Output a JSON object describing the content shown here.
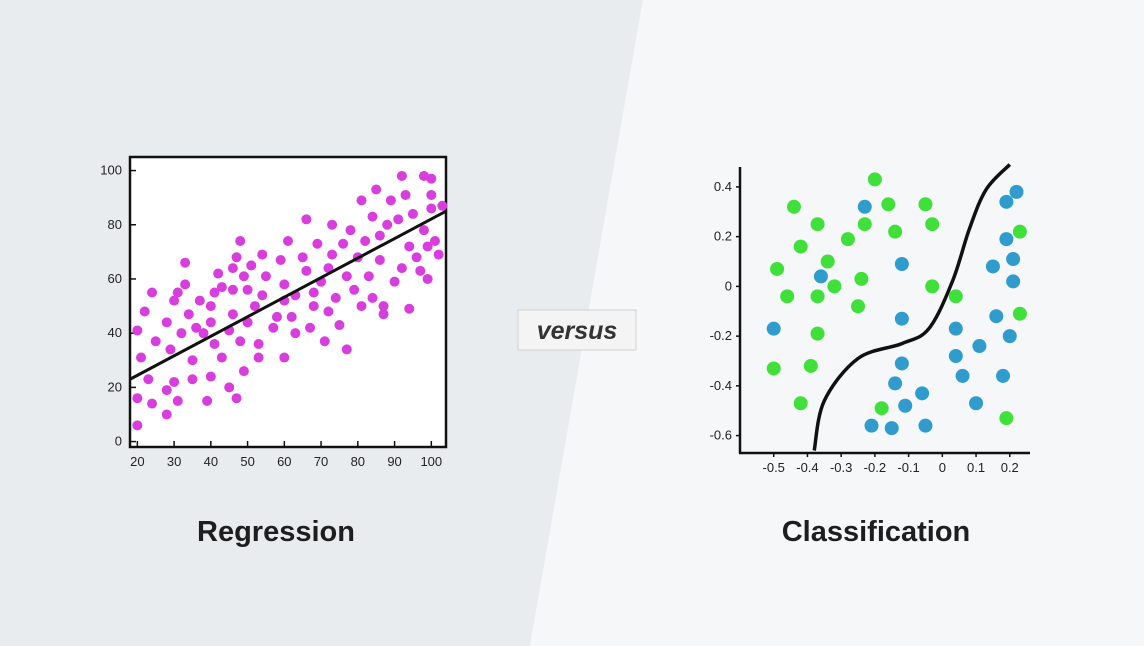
{
  "colors": {
    "left_panel": "#e9ecee",
    "right_panel": "#f6f7f8",
    "regression_point": "#d83ddd",
    "class_a": "#3fe03a",
    "class_b": "#2f9ccd",
    "line": "#111111"
  },
  "versus_label": "versus",
  "chart_data": [
    {
      "type": "scatter",
      "caption": "Regression",
      "xlim": [
        18,
        104
      ],
      "ylim": [
        -2,
        105
      ],
      "x_ticks": [
        20,
        30,
        40,
        50,
        60,
        70,
        80,
        90,
        100
      ],
      "y_ticks": [
        0,
        20,
        40,
        60,
        80,
        100
      ],
      "fit_line": [
        [
          18,
          23
        ],
        [
          104,
          85
        ]
      ],
      "points": [
        [
          20,
          6
        ],
        [
          20,
          16
        ],
        [
          21,
          31
        ],
        [
          20,
          41
        ],
        [
          23,
          23
        ],
        [
          22,
          48
        ],
        [
          24,
          55
        ],
        [
          24,
          14
        ],
        [
          25,
          37
        ],
        [
          28,
          10
        ],
        [
          28,
          19
        ],
        [
          28,
          44
        ],
        [
          29,
          34
        ],
        [
          30,
          52
        ],
        [
          30,
          22
        ],
        [
          31,
          15
        ],
        [
          31,
          55
        ],
        [
          32,
          40
        ],
        [
          33,
          58
        ],
        [
          33,
          66
        ],
        [
          34,
          47
        ],
        [
          35,
          23
        ],
        [
          35,
          30
        ],
        [
          36,
          42
        ],
        [
          37,
          52
        ],
        [
          38,
          40
        ],
        [
          39,
          15
        ],
        [
          40,
          24
        ],
        [
          40,
          44
        ],
        [
          40,
          50
        ],
        [
          41,
          36
        ],
        [
          41,
          55
        ],
        [
          42,
          62
        ],
        [
          43,
          31
        ],
        [
          43,
          57
        ],
        [
          45,
          20
        ],
        [
          45,
          41
        ],
        [
          46,
          47
        ],
        [
          46,
          56
        ],
        [
          46,
          64
        ],
        [
          47,
          68
        ],
        [
          47,
          16
        ],
        [
          48,
          74
        ],
        [
          48,
          37
        ],
        [
          49,
          26
        ],
        [
          49,
          61
        ],
        [
          50,
          44
        ],
        [
          50,
          56
        ],
        [
          51,
          65
        ],
        [
          52,
          50
        ],
        [
          53,
          31
        ],
        [
          53,
          36
        ],
        [
          54,
          54
        ],
        [
          54,
          69
        ],
        [
          55,
          61
        ],
        [
          57,
          42
        ],
        [
          58,
          46
        ],
        [
          59,
          67
        ],
        [
          60,
          31
        ],
        [
          60,
          52
        ],
        [
          60,
          58
        ],
        [
          61,
          74
        ],
        [
          62,
          46
        ],
        [
          63,
          40
        ],
        [
          63,
          54
        ],
        [
          65,
          68
        ],
        [
          66,
          63
        ],
        [
          66,
          82
        ],
        [
          67,
          42
        ],
        [
          68,
          50
        ],
        [
          68,
          55
        ],
        [
          69,
          73
        ],
        [
          70,
          59
        ],
        [
          71,
          37
        ],
        [
          72,
          64
        ],
        [
          72,
          48
        ],
        [
          73,
          69
        ],
        [
          73,
          80
        ],
        [
          74,
          53
        ],
        [
          75,
          43
        ],
        [
          76,
          73
        ],
        [
          77,
          34
        ],
        [
          77,
          61
        ],
        [
          78,
          78
        ],
        [
          79,
          56
        ],
        [
          80,
          68
        ],
        [
          81,
          50
        ],
        [
          81,
          89
        ],
        [
          82,
          74
        ],
        [
          83,
          61
        ],
        [
          84,
          53
        ],
        [
          84,
          83
        ],
        [
          85,
          93
        ],
        [
          86,
          67
        ],
        [
          86,
          76
        ],
        [
          87,
          50
        ],
        [
          87,
          47
        ],
        [
          88,
          80
        ],
        [
          89,
          89
        ],
        [
          90,
          59
        ],
        [
          91,
          82
        ],
        [
          92,
          64
        ],
        [
          92,
          98
        ],
        [
          93,
          91
        ],
        [
          94,
          49
        ],
        [
          94,
          72
        ],
        [
          95,
          84
        ],
        [
          96,
          68
        ],
        [
          97,
          63
        ],
        [
          98,
          78
        ],
        [
          98,
          98
        ],
        [
          99,
          60
        ],
        [
          99,
          72
        ],
        [
          100,
          86
        ],
        [
          100,
          91
        ],
        [
          100,
          97
        ],
        [
          101,
          74
        ],
        [
          102,
          69
        ],
        [
          103,
          87
        ]
      ]
    },
    {
      "type": "scatter",
      "caption": "Classification",
      "xlim": [
        -0.6,
        0.26
      ],
      "ylim": [
        -0.67,
        0.48
      ],
      "x_ticks": [
        "-0.5",
        "-0.4",
        "-0.3",
        "-0.2",
        "-0.1",
        "0",
        "0.1",
        "0.2"
      ],
      "y_ticks": [
        "0.4",
        "0.2",
        "0",
        "-0.2",
        "-0.4",
        "-0.6"
      ],
      "decision_boundary": [
        [
          -0.38,
          -0.66
        ],
        [
          -0.35,
          -0.46
        ],
        [
          -0.25,
          -0.29
        ],
        [
          -0.12,
          -0.23
        ],
        [
          -0.04,
          -0.17
        ],
        [
          0.03,
          0.02
        ],
        [
          0.08,
          0.23
        ],
        [
          0.13,
          0.39
        ],
        [
          0.2,
          0.49
        ]
      ],
      "series": [
        {
          "name": "",
          "points": [
            [
              -0.49,
              0.07
            ],
            [
              -0.44,
              0.32
            ],
            [
              -0.42,
              0.16
            ],
            [
              -0.46,
              -0.04
            ],
            [
              -0.37,
              0.25
            ],
            [
              -0.34,
              0.1
            ],
            [
              -0.37,
              -0.04
            ],
            [
              -0.32,
              0.0
            ],
            [
              -0.28,
              0.19
            ],
            [
              -0.24,
              0.03
            ],
            [
              -0.23,
              0.25
            ],
            [
              -0.2,
              0.43
            ],
            [
              -0.16,
              0.33
            ],
            [
              -0.14,
              0.22
            ],
            [
              -0.05,
              0.33
            ],
            [
              -0.03,
              0.25
            ],
            [
              -0.03,
              0.0
            ],
            [
              0.04,
              -0.04
            ],
            [
              -0.37,
              -0.19
            ],
            [
              -0.39,
              -0.32
            ],
            [
              -0.5,
              -0.33
            ],
            [
              -0.42,
              -0.47
            ],
            [
              -0.25,
              -0.08
            ],
            [
              -0.18,
              -0.49
            ],
            [
              0.23,
              -0.11
            ],
            [
              0.23,
              0.22
            ],
            [
              0.19,
              -0.53
            ]
          ]
        },
        {
          "name": "",
          "points": [
            [
              -0.5,
              -0.17
            ],
            [
              -0.36,
              0.04
            ],
            [
              -0.23,
              0.32
            ],
            [
              -0.12,
              0.09
            ],
            [
              -0.12,
              -0.13
            ],
            [
              -0.12,
              -0.31
            ],
            [
              -0.14,
              -0.39
            ],
            [
              -0.11,
              -0.48
            ],
            [
              -0.06,
              -0.43
            ],
            [
              -0.21,
              -0.56
            ],
            [
              -0.15,
              -0.57
            ],
            [
              -0.05,
              -0.56
            ],
            [
              0.04,
              -0.17
            ],
            [
              0.04,
              -0.28
            ],
            [
              0.06,
              -0.36
            ],
            [
              0.11,
              -0.24
            ],
            [
              0.1,
              -0.47
            ],
            [
              0.16,
              -0.12
            ],
            [
              0.18,
              -0.36
            ],
            [
              0.2,
              -0.2
            ],
            [
              0.15,
              0.08
            ],
            [
              0.19,
              0.19
            ],
            [
              0.19,
              0.34
            ],
            [
              0.22,
              0.38
            ],
            [
              0.21,
              0.02
            ],
            [
              0.21,
              0.11
            ]
          ]
        }
      ]
    }
  ]
}
